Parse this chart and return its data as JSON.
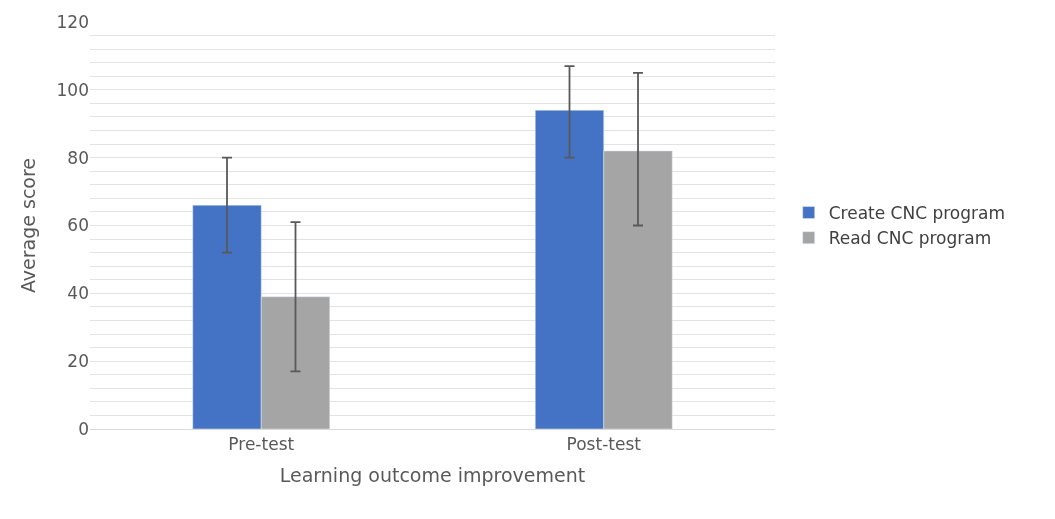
{
  "chart_data": {
    "type": "bar",
    "xlabel": "Learning outcome improvement",
    "ylabel": "Average score",
    "categories": [
      "Pre-test",
      "Post-test"
    ],
    "series": [
      {
        "name": "Create CNC program",
        "color": "#4472c4",
        "values": [
          66,
          94
        ],
        "errors": [
          [
            52,
            80
          ],
          [
            80,
            107
          ]
        ]
      },
      {
        "name": "Read CNC program",
        "color": "#a5a5a5",
        "values": [
          39,
          82
        ],
        "errors": [
          [
            17,
            61
          ],
          [
            60,
            105
          ]
        ]
      }
    ],
    "ylim": [
      0,
      120
    ],
    "yticks": [
      0,
      {
        "value": 4,
        "label": null
      },
      {
        "value": 8,
        "label": null
      },
      {
        "value": 12,
        "label": null
      },
      {
        "value": 16,
        "label": null
      },
      20,
      {
        "value": 24,
        "label": null
      },
      {
        "value": 28,
        "label": null
      },
      {
        "value": 32,
        "label": null
      },
      {
        "value": 36,
        "label": null
      },
      40,
      {
        "value": 44,
        "label": null
      },
      {
        "value": 48,
        "label": null
      },
      {
        "value": 52,
        "label": null
      },
      {
        "value": 56,
        "label": null
      },
      60,
      {
        "value": 64,
        "label": null
      },
      {
        "value": 68,
        "label": null
      },
      {
        "value": 72,
        "label": null
      },
      {
        "value": 76,
        "label": null
      },
      80,
      {
        "value": 84,
        "label": null
      },
      {
        "value": 88,
        "label": null
      },
      {
        "value": 92,
        "label": null
      },
      {
        "value": 96,
        "label": null
      },
      100,
      {
        "value": 104,
        "label": null
      },
      {
        "value": 108,
        "label": null
      },
      {
        "value": 112,
        "label": null
      },
      {
        "value": 116,
        "label": null
      },
      120
    ],
    "grid": "y",
    "legend": "right"
  }
}
